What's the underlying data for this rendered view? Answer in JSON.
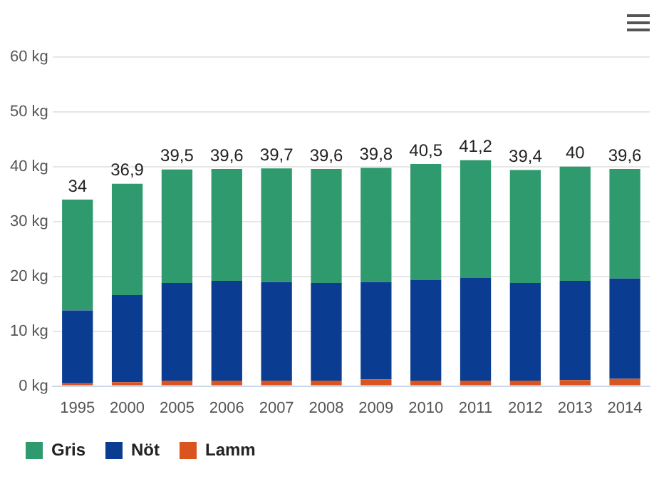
{
  "chart_data": {
    "type": "bar",
    "stacked": true,
    "categories": [
      "1995",
      "2000",
      "2005",
      "2006",
      "2007",
      "2008",
      "2009",
      "2010",
      "2011",
      "2012",
      "2013",
      "2014"
    ],
    "series": [
      {
        "name": "Lamm",
        "color": "#d9541e",
        "values": [
          0.5,
          0.7,
          1.0,
          1.0,
          1.0,
          1.0,
          1.2,
          1.0,
          1.0,
          1.0,
          1.1,
          1.3
        ]
      },
      {
        "name": "Nöt",
        "color": "#0a3d91",
        "values": [
          13.3,
          15.9,
          17.8,
          18.2,
          18.0,
          17.8,
          17.8,
          18.3,
          18.7,
          17.8,
          18.1,
          18.3
        ]
      },
      {
        "name": "Gris",
        "color": "#2e9a6e",
        "values": [
          20.2,
          20.3,
          20.7,
          20.4,
          20.7,
          20.8,
          20.8,
          21.2,
          21.5,
          20.6,
          20.8,
          20.0
        ]
      }
    ],
    "totals": [
      "34",
      "36,9",
      "39,5",
      "39,6",
      "39,7",
      "39,6",
      "39,8",
      "40,5",
      "41,2",
      "39,4",
      "40",
      "39,6"
    ],
    "ylim": [
      0,
      60
    ],
    "yticks": [
      {
        "value": 0,
        "label": "0 kg"
      },
      {
        "value": 10,
        "label": "10 kg"
      },
      {
        "value": 20,
        "label": "20 kg"
      },
      {
        "value": 30,
        "label": "30 kg"
      },
      {
        "value": 40,
        "label": "40 kg"
      },
      {
        "value": 50,
        "label": "50 kg"
      },
      {
        "value": 60,
        "label": "60 kg"
      }
    ],
    "grid": "y",
    "legend": "bottom left"
  }
}
